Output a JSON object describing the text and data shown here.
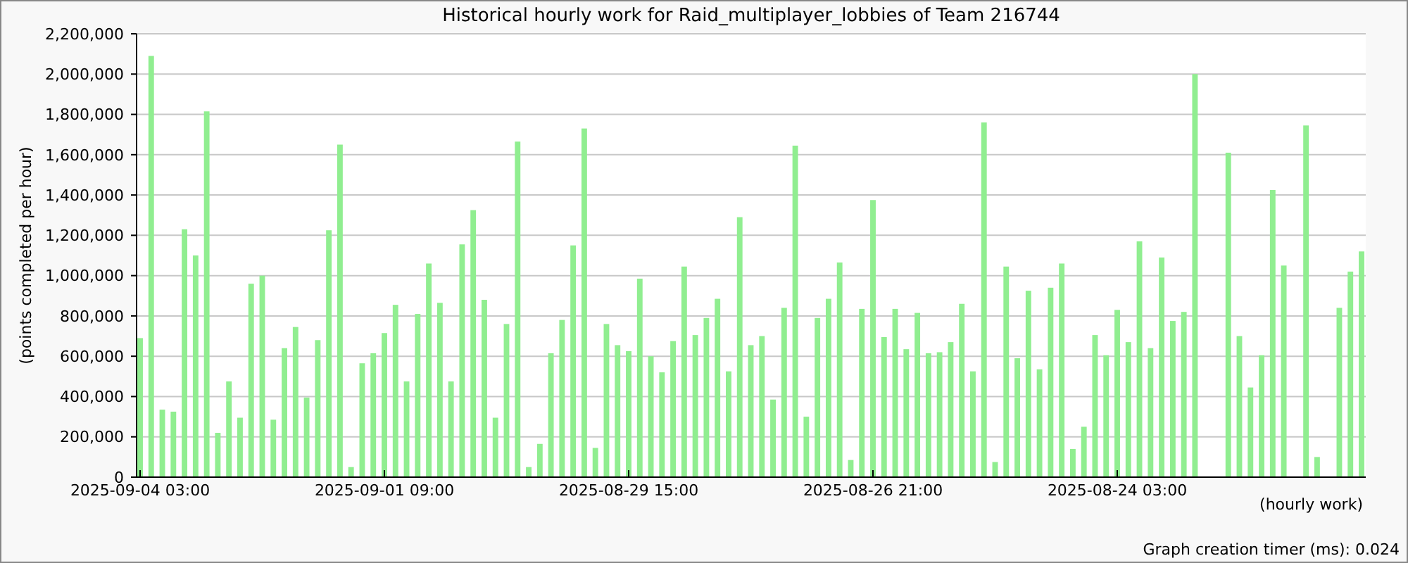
{
  "chart_data": {
    "type": "bar",
    "title": "Historical hourly work for Raid_multiplayer_lobbies of Team 216744",
    "xlabel": "(hourly work)",
    "ylabel": "(points completed per hour)",
    "annotations": [
      "Graph creation timer (ms): 0.024"
    ],
    "categories": [
      "2025-09-04 03:00",
      null,
      null,
      null,
      null,
      null,
      null,
      null,
      null,
      null,
      null,
      null,
      null,
      null,
      null,
      null,
      null,
      null,
      null,
      null,
      null,
      null,
      "2025-09-01 09:00",
      null,
      null,
      null,
      null,
      null,
      null,
      null,
      null,
      null,
      null,
      null,
      null,
      null,
      null,
      null,
      null,
      null,
      null,
      null,
      null,
      null,
      "2025-08-29 15:00",
      null,
      null,
      null,
      null,
      null,
      null,
      null,
      null,
      null,
      null,
      null,
      null,
      null,
      null,
      null,
      null,
      null,
      null,
      null,
      null,
      null,
      "2025-08-26 21:00",
      null,
      null,
      null,
      null,
      null,
      null,
      null,
      null,
      null,
      null,
      null,
      null,
      null,
      null,
      null,
      null,
      null,
      null,
      null,
      null,
      null,
      "2025-08-24 03:00",
      null,
      null,
      null,
      null,
      null,
      null,
      null,
      null,
      null,
      null,
      null,
      null,
      null,
      null,
      null,
      null,
      null,
      null,
      null,
      null,
      null,
      null
    ],
    "color": "#90ee90",
    "values": [
      690000,
      2090000,
      335000,
      325000,
      1230000,
      1100000,
      1815000,
      220000,
      475000,
      295000,
      960000,
      1000000,
      285000,
      640000,
      745000,
      395000,
      680000,
      1225000,
      1650000,
      50000,
      565000,
      615000,
      715000,
      855000,
      475000,
      810000,
      1060000,
      865000,
      475000,
      1155000,
      1325000,
      880000,
      295000,
      760000,
      1665000,
      50000,
      165000,
      615000,
      780000,
      1150000,
      1730000,
      145000,
      760000,
      655000,
      625000,
      985000,
      600000,
      520000,
      675000,
      1045000,
      705000,
      790000,
      885000,
      525000,
      1290000,
      655000,
      700000,
      385000,
      840000,
      1645000,
      300000,
      790000,
      885000,
      1065000,
      85000,
      835000,
      1375000,
      695000,
      835000,
      635000,
      815000,
      615000,
      620000,
      670000,
      860000,
      525000,
      1760000,
      75000,
      1045000,
      590000,
      925000,
      535000,
      940000,
      1060000,
      140000,
      250000,
      705000,
      605000,
      830000,
      670000,
      1170000,
      640000,
      1090000,
      775000,
      820000,
      2000000,
      null,
      null,
      1610000,
      700000,
      445000,
      605000,
      1425000,
      1050000,
      null,
      1745000,
      100000,
      null,
      840000,
      1020000,
      1120000
    ],
    "ylim": [
      0,
      2200000
    ],
    "yticks": [
      0,
      {
        "value": 200000,
        "label": "200,000"
      },
      {
        "value": 400000,
        "label": "400,000"
      },
      {
        "value": 600000,
        "label": "600,000"
      },
      {
        "value": 800000,
        "label": "800,000"
      },
      {
        "value": 1000000,
        "label": "1,000,000"
      },
      {
        "value": 1200000,
        "label": "1,200,000"
      },
      {
        "value": 1400000,
        "label": "1,400,000"
      },
      {
        "value": 1600000,
        "label": "1,600,000"
      },
      {
        "value": 1800000,
        "label": "1,800,000"
      },
      {
        "value": 2000000,
        "label": "2,000,000"
      },
      {
        "value": 2200000,
        "label": "2,200,000"
      }
    ],
    "grid": "y"
  }
}
